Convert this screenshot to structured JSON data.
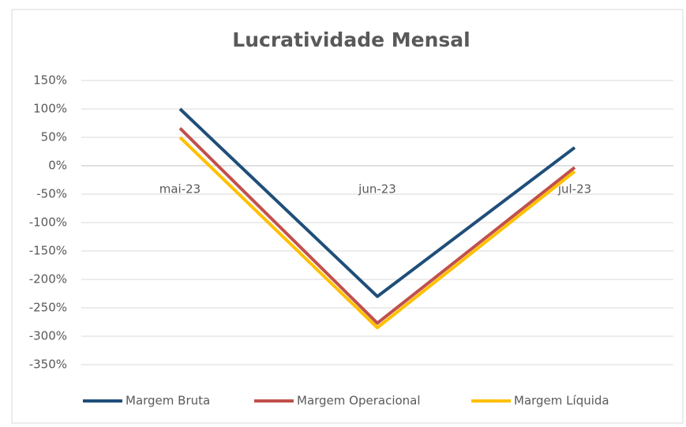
{
  "chart_data": {
    "type": "line",
    "title": "Lucratividade Mensal",
    "categories": [
      "mai-23",
      "jun-23",
      "jul-23"
    ],
    "series": [
      {
        "name": "Margem Bruta",
        "color": "#1f4e79",
        "values": [
          100,
          -230,
          32
        ]
      },
      {
        "name": "Margem Operacional",
        "color": "#c0504d",
        "values": [
          66,
          -277,
          -3
        ]
      },
      {
        "name": "Margem Líquida",
        "color": "#ffc000",
        "values": [
          50,
          -285,
          -10
        ]
      }
    ],
    "ylim": [
      -350,
      150
    ],
    "yticks": [
      {
        "value": 150,
        "label": "150%"
      },
      {
        "value": 100,
        "label": "100%"
      },
      {
        "value": 50,
        "label": "50%"
      },
      {
        "value": 0,
        "label": "0%"
      },
      {
        "value": -50,
        "label": "-50%"
      },
      {
        "value": -100,
        "label": "-100%"
      },
      {
        "value": -150,
        "label": "-150%"
      },
      {
        "value": -200,
        "label": "-200%"
      },
      {
        "value": -250,
        "label": "-250%"
      },
      {
        "value": -300,
        "label": "-300%"
      },
      {
        "value": -350,
        "label": "-350%"
      }
    ],
    "grid": true,
    "legend": "bottom"
  }
}
